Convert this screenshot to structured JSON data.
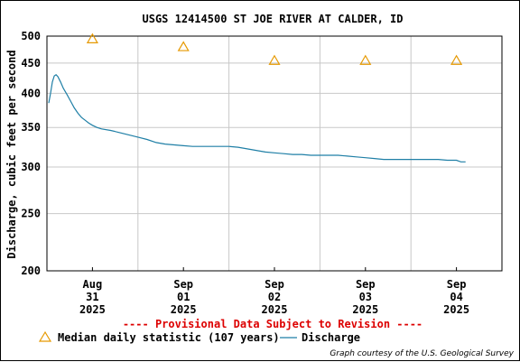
{
  "chart_data": {
    "type": "line",
    "title": "USGS 12414500 ST JOE RIVER AT CALDER, ID",
    "ylabel": "Discharge, cubic feet per second",
    "xlabel": "",
    "y_scale": "log",
    "ylim": [
      200,
      500
    ],
    "y_ticks": [
      "200",
      "250",
      "300",
      "350",
      "400",
      "450",
      "500"
    ],
    "x_ticks": [
      {
        "line1": "Aug",
        "line2": "31",
        "line3": "2025"
      },
      {
        "line1": "Sep",
        "line2": "01",
        "line3": "2025"
      },
      {
        "line1": "Sep",
        "line2": "02",
        "line3": "2025"
      },
      {
        "line1": "Sep",
        "line2": "03",
        "line3": "2025"
      },
      {
        "line1": "Sep",
        "line2": "04",
        "line3": "2025"
      }
    ],
    "grid": true,
    "series": [
      {
        "name": "Discharge",
        "color": "#1f7fa6",
        "points": [
          [
            -0.48,
            385
          ],
          [
            -0.46,
            400
          ],
          [
            -0.44,
            418
          ],
          [
            -0.42,
            428
          ],
          [
            -0.4,
            430
          ],
          [
            -0.38,
            427
          ],
          [
            -0.35,
            418
          ],
          [
            -0.32,
            408
          ],
          [
            -0.28,
            398
          ],
          [
            -0.24,
            388
          ],
          [
            -0.2,
            378
          ],
          [
            -0.16,
            370
          ],
          [
            -0.12,
            364
          ],
          [
            -0.08,
            360
          ],
          [
            -0.04,
            356
          ],
          [
            0.0,
            353
          ],
          [
            0.05,
            350
          ],
          [
            0.1,
            348
          ],
          [
            0.2,
            346
          ],
          [
            0.3,
            343
          ],
          [
            0.4,
            340
          ],
          [
            0.5,
            337
          ],
          [
            0.6,
            334
          ],
          [
            0.7,
            330
          ],
          [
            0.8,
            328
          ],
          [
            0.9,
            327
          ],
          [
            1.0,
            326
          ],
          [
            1.1,
            325
          ],
          [
            1.2,
            325
          ],
          [
            1.3,
            325
          ],
          [
            1.4,
            325
          ],
          [
            1.5,
            325
          ],
          [
            1.6,
            324
          ],
          [
            1.7,
            322
          ],
          [
            1.8,
            320
          ],
          [
            1.9,
            318
          ],
          [
            2.0,
            317
          ],
          [
            2.1,
            316
          ],
          [
            2.2,
            315
          ],
          [
            2.3,
            315
          ],
          [
            2.4,
            314
          ],
          [
            2.5,
            314
          ],
          [
            2.6,
            314
          ],
          [
            2.7,
            314
          ],
          [
            2.8,
            313
          ],
          [
            2.9,
            312
          ],
          [
            3.0,
            311
          ],
          [
            3.1,
            310
          ],
          [
            3.2,
            309
          ],
          [
            3.3,
            309
          ],
          [
            3.4,
            309
          ],
          [
            3.5,
            309
          ],
          [
            3.6,
            309
          ],
          [
            3.7,
            309
          ],
          [
            3.8,
            309
          ],
          [
            3.9,
            308
          ],
          [
            4.0,
            308
          ],
          [
            4.05,
            306
          ],
          [
            4.1,
            306
          ]
        ]
      },
      {
        "name": "Median daily statistic (107 years)",
        "color": "#e69900",
        "marker": "triangle",
        "points": [
          [
            0,
            495
          ],
          [
            1,
            480
          ],
          [
            2,
            455
          ],
          [
            3,
            455
          ],
          [
            4,
            455
          ]
        ]
      }
    ],
    "legend_position": "bottom"
  },
  "provisional_text": "---- Provisional Data Subject to Revision ----",
  "legend": {
    "median_label": "Median daily statistic (107 years)",
    "discharge_label": "Discharge"
  },
  "credit": "Graph courtesy of the U.S. Geological Survey",
  "colors": {
    "discharge": "#1f7fa6",
    "median": "#e69900",
    "provisional": "#dd0000",
    "grid": "#c8c8c8"
  }
}
